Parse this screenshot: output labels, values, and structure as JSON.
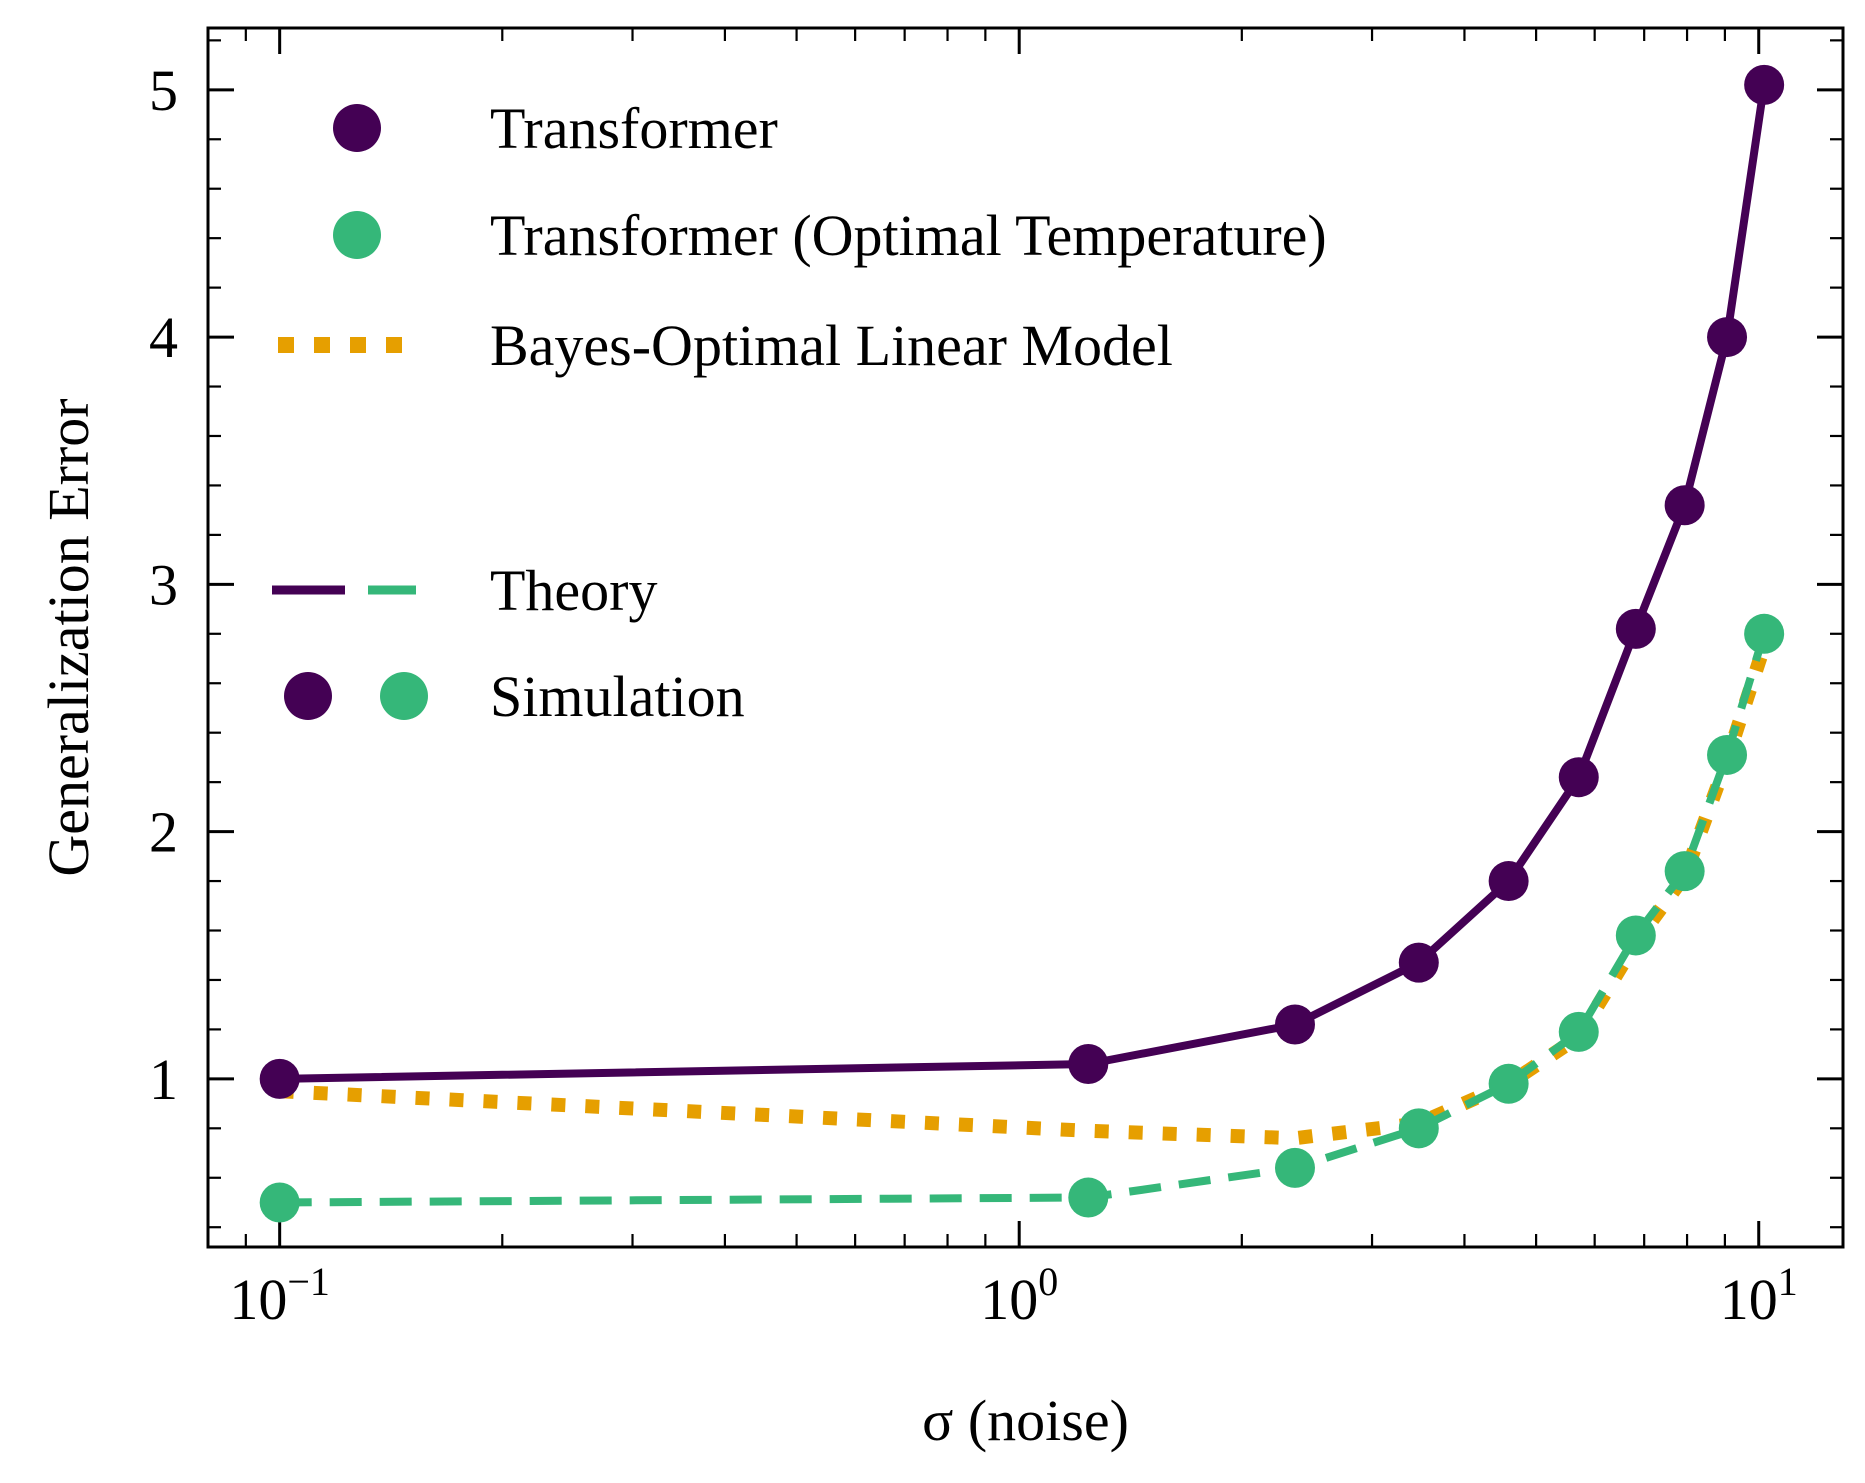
{
  "chart_data": {
    "type": "line",
    "xscale": "log",
    "xlabel": "σ (noise)",
    "ylabel": "Generalization Error",
    "xlim": [
      0.08,
      13.0
    ],
    "ylim": [
      0.32,
      5.25
    ],
    "x_ticks": [
      {
        "value": 0.1,
        "base": "10",
        "exp": "−1"
      },
      {
        "value": 1,
        "base": "10",
        "exp": "0"
      },
      {
        "value": 10,
        "base": "10",
        "exp": "1"
      }
    ],
    "y_ticks": [
      1,
      2,
      3,
      4,
      5
    ],
    "y_minor_step": 0.2,
    "x": [
      0.1,
      1.24,
      2.36,
      3.47,
      4.59,
      5.71,
      6.82,
      7.94,
      9.06,
      10.17
    ],
    "series": [
      {
        "name": "Transformer",
        "color": "#440154",
        "line_style": "solid",
        "theory_values": [
          1.0,
          1.06,
          1.22,
          1.47,
          1.8,
          2.22,
          2.82,
          3.32,
          4.0,
          5.02
        ],
        "sim_values": [
          1.0,
          1.06,
          1.22,
          1.47,
          1.8,
          2.22,
          2.82,
          3.32,
          4.0,
          5.02
        ]
      },
      {
        "name": "Transformer (Optimal Temperature)",
        "color": "#35b779",
        "line_style": "dashed",
        "theory_values": [
          0.5,
          0.52,
          0.64,
          0.8,
          0.98,
          1.19,
          1.58,
          1.84,
          2.31,
          2.8
        ],
        "sim_values": [
          0.5,
          0.52,
          0.64,
          0.8,
          0.98,
          1.19,
          1.58,
          1.84,
          2.31,
          2.8
        ]
      },
      {
        "name": "Bayes-Optimal Linear Model",
        "color": "#e69f00",
        "line_style": "dotted",
        "theory_values": [
          0.95,
          0.79,
          0.76,
          0.82,
          0.98,
          1.17,
          1.55,
          1.82,
          2.29,
          2.75
        ]
      }
    ],
    "legend": {
      "position": "top-left",
      "entries": [
        {
          "label": "Transformer",
          "kind": "marker",
          "colors": [
            "#440154"
          ]
        },
        {
          "label": "Transformer (Optimal Temperature)",
          "kind": "marker",
          "colors": [
            "#35b779"
          ]
        },
        {
          "label": "Bayes-Optimal Linear Model",
          "kind": "dotted",
          "colors": [
            "#e69f00"
          ]
        },
        {
          "label": "Theory",
          "kind": "lines",
          "colors": [
            "#440154",
            "#35b779"
          ]
        },
        {
          "label": "Simulation",
          "kind": "markers",
          "colors": [
            "#440154",
            "#35b779"
          ]
        }
      ]
    }
  }
}
